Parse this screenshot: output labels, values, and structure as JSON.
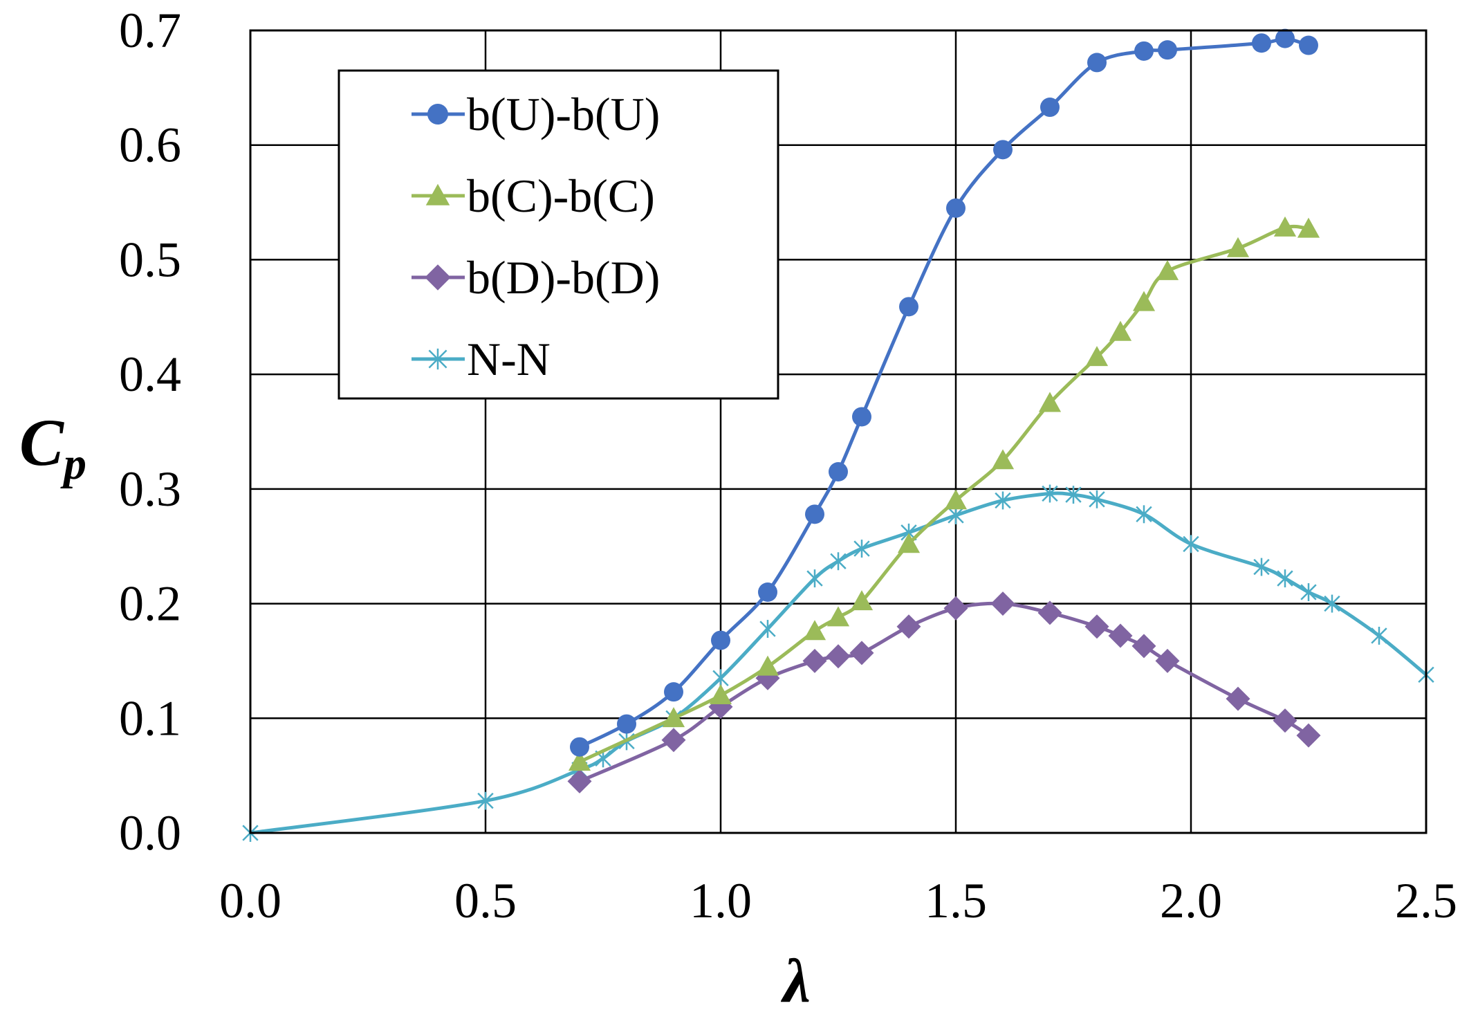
{
  "chart_data": {
    "type": "line",
    "title": "",
    "xlabel": "λ",
    "ylabel": {
      "main": "C",
      "sub": "p"
    },
    "xlim": [
      0,
      2.5
    ],
    "ylim": [
      0,
      0.7
    ],
    "xticks": [
      0,
      0.5,
      1.0,
      1.5,
      2.0,
      2.5
    ],
    "yticks": [
      0,
      0.1,
      0.2,
      0.3,
      0.4,
      0.5,
      0.6,
      0.7
    ],
    "xtick_labels": [
      "0.0",
      "0.5",
      "1.0",
      "1.5",
      "2.0",
      "2.5"
    ],
    "ytick_labels": [
      "0.0",
      "0.1",
      "0.2",
      "0.3",
      "0.4",
      "0.5",
      "0.6",
      "0.7"
    ],
    "grid": true,
    "legend_position": "top-left",
    "series": [
      {
        "name": "b(U)-b(U)",
        "color": "#4472C4",
        "marker": "circle",
        "points": [
          [
            0.7,
            0.075
          ],
          [
            0.8,
            0.095
          ],
          [
            0.9,
            0.123
          ],
          [
            1.0,
            0.168
          ],
          [
            1.1,
            0.21
          ],
          [
            1.2,
            0.278
          ],
          [
            1.25,
            0.315
          ],
          [
            1.3,
            0.363
          ],
          [
            1.4,
            0.459
          ],
          [
            1.5,
            0.545
          ],
          [
            1.6,
            0.596
          ],
          [
            1.7,
            0.633
          ],
          [
            1.8,
            0.672
          ],
          [
            1.9,
            0.682
          ],
          [
            1.95,
            0.683
          ],
          [
            2.15,
            0.689
          ],
          [
            2.2,
            0.693
          ],
          [
            2.25,
            0.687
          ]
        ]
      },
      {
        "name": "b(C)-b(C)",
        "color": "#9BBB59",
        "marker": "triangle",
        "points": [
          [
            0.7,
            0.062
          ],
          [
            0.9,
            0.1
          ],
          [
            1.0,
            0.12
          ],
          [
            1.1,
            0.145
          ],
          [
            1.2,
            0.176
          ],
          [
            1.25,
            0.188
          ],
          [
            1.3,
            0.202
          ],
          [
            1.4,
            0.252
          ],
          [
            1.5,
            0.29
          ],
          [
            1.6,
            0.325
          ],
          [
            1.7,
            0.375
          ],
          [
            1.8,
            0.415
          ],
          [
            1.85,
            0.437
          ],
          [
            1.9,
            0.463
          ],
          [
            1.95,
            0.49
          ],
          [
            2.1,
            0.51
          ],
          [
            2.2,
            0.528
          ],
          [
            2.25,
            0.527
          ]
        ]
      },
      {
        "name": "b(D)-b(D)",
        "color": "#8064A2",
        "marker": "diamond",
        "points": [
          [
            0.7,
            0.045
          ],
          [
            0.9,
            0.081
          ],
          [
            1.0,
            0.11
          ],
          [
            1.1,
            0.135
          ],
          [
            1.2,
            0.15
          ],
          [
            1.25,
            0.154
          ],
          [
            1.3,
            0.157
          ],
          [
            1.4,
            0.18
          ],
          [
            1.5,
            0.196
          ],
          [
            1.6,
            0.2
          ],
          [
            1.7,
            0.192
          ],
          [
            1.8,
            0.18
          ],
          [
            1.85,
            0.172
          ],
          [
            1.9,
            0.163
          ],
          [
            1.95,
            0.15
          ],
          [
            2.1,
            0.117
          ],
          [
            2.2,
            0.098
          ],
          [
            2.25,
            0.085
          ]
        ]
      },
      {
        "name": "N-N",
        "color": "#4BACC6",
        "marker": "asterisk",
        "points": [
          [
            0.0,
            0.0
          ],
          [
            0.5,
            0.028
          ],
          [
            0.7,
            0.055
          ],
          [
            0.75,
            0.065
          ],
          [
            0.8,
            0.08
          ],
          [
            0.9,
            0.1
          ],
          [
            1.0,
            0.135
          ],
          [
            1.1,
            0.178
          ],
          [
            1.2,
            0.222
          ],
          [
            1.25,
            0.237
          ],
          [
            1.3,
            0.248
          ],
          [
            1.4,
            0.262
          ],
          [
            1.5,
            0.277
          ],
          [
            1.6,
            0.29
          ],
          [
            1.7,
            0.296
          ],
          [
            1.75,
            0.295
          ],
          [
            1.8,
            0.291
          ],
          [
            1.9,
            0.278
          ],
          [
            2.0,
            0.252
          ],
          [
            2.15,
            0.232
          ],
          [
            2.2,
            0.222
          ],
          [
            2.25,
            0.21
          ],
          [
            2.3,
            0.2
          ],
          [
            2.4,
            0.172
          ],
          [
            2.5,
            0.138
          ]
        ]
      }
    ]
  }
}
